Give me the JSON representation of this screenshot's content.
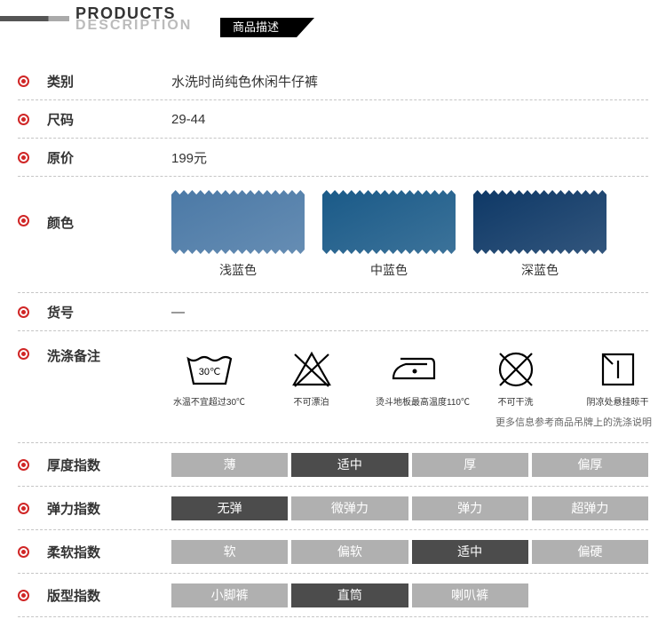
{
  "header": {
    "line1": "PRODUCTS",
    "line2": "DESCRIPTION",
    "black_label": "商品描述"
  },
  "rows": {
    "category": {
      "label": "类别",
      "value": "水洗时尚纯色休闲牛仔裤"
    },
    "size": {
      "label": "尺码",
      "value": "29-44"
    },
    "price": {
      "label": "原价",
      "value": "199元"
    },
    "color": {
      "label": "颜色"
    },
    "sku": {
      "label": "货号",
      "value": "—"
    },
    "wash": {
      "label": "洗涤备注"
    },
    "thickness": {
      "label": "厚度指数"
    },
    "stretch": {
      "label": "弹力指数"
    },
    "soft": {
      "label": "柔软指数"
    },
    "fit": {
      "label": "版型指数"
    }
  },
  "swatches": [
    {
      "label": "浅蓝色",
      "color": "#4b79a6"
    },
    {
      "label": "中蓝色",
      "color": "#1a5a88"
    },
    {
      "label": "深蓝色",
      "color": "#0e3866"
    }
  ],
  "wash_icons": [
    {
      "text": "水温不宜超过30℃",
      "label30": "30℃"
    },
    {
      "text": "不可漂泊"
    },
    {
      "text": "烫斗地板最高温度110℃"
    },
    {
      "text": "不可干洗"
    },
    {
      "text": "阴凉处悬挂晾干"
    }
  ],
  "wash_note": "更多信息参考商品吊牌上的洗涤说明",
  "index_colors": {
    "inactive": "#b0b0b0",
    "active": "#4c4c4c"
  },
  "indices": {
    "thickness": {
      "options": [
        "薄",
        "适中",
        "厚",
        "偏厚"
      ],
      "selected": 1,
      "cols": 4
    },
    "stretch": {
      "options": [
        "无弹",
        "微弹力",
        "弹力",
        "超弹力"
      ],
      "selected": 0,
      "cols": 4
    },
    "soft": {
      "options": [
        "软",
        "偏软",
        "适中",
        "偏硬"
      ],
      "selected": 2,
      "cols": 4
    },
    "fit": {
      "options": [
        "小脚裤",
        "直筒",
        "喇叭裤"
      ],
      "selected": 1,
      "cols": 4
    }
  }
}
